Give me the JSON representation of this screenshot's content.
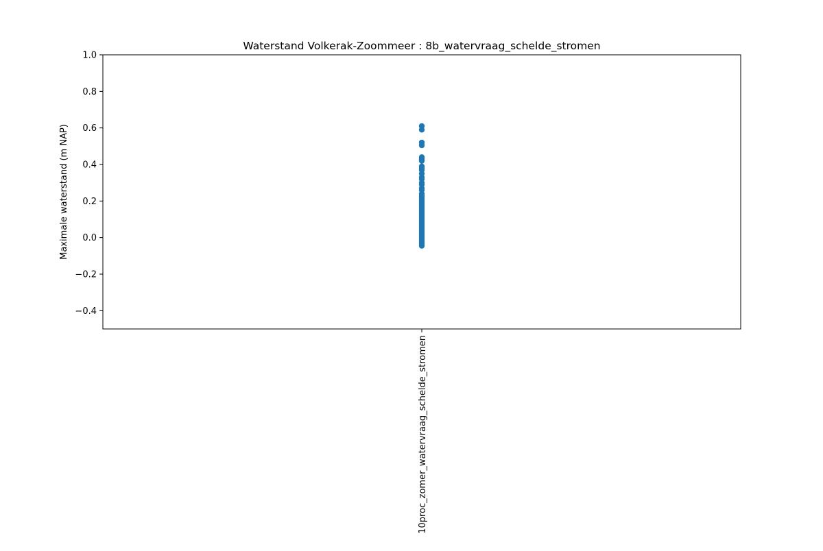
{
  "chart_data": {
    "type": "scatter",
    "title": "Waterstand Volkerak-Zoommeer : 8b_watervraag_schelde_stromen",
    "xlabel": "",
    "ylabel": "Maximale waterstand (m NAP)",
    "categories": [
      "10proc_zomer_watervraag_schelde_stromen"
    ],
    "ylim": [
      -0.5,
      1.0
    ],
    "yticks": [
      -0.4,
      -0.2,
      0.0,
      0.2,
      0.4,
      0.6,
      0.8,
      1.0
    ],
    "ytick_labels": [
      "−0.4",
      "−0.2",
      "0.0",
      "0.2",
      "0.4",
      "0.6",
      "0.8",
      "1.0"
    ],
    "grid": false,
    "legend": "none",
    "marker_color": "#1f77b4",
    "series": [
      {
        "category": "10proc_zomer_watervraag_schelde_stromen",
        "values": [
          0.61,
          0.59,
          0.52,
          0.505,
          0.44,
          0.43,
          0.42,
          0.39,
          0.38,
          0.37,
          0.35,
          0.33,
          0.32,
          0.3,
          0.29,
          0.27,
          0.26,
          0.24,
          0.23,
          0.22,
          0.21,
          0.2,
          0.19,
          0.18,
          0.17,
          0.16,
          0.15,
          0.14,
          0.13,
          0.12,
          0.11,
          0.1,
          0.09,
          0.08,
          0.07,
          0.06,
          0.05,
          0.04,
          0.03,
          0.02,
          0.01,
          0.0,
          -0.01,
          -0.02,
          -0.03,
          -0.04,
          -0.045
        ]
      }
    ]
  }
}
